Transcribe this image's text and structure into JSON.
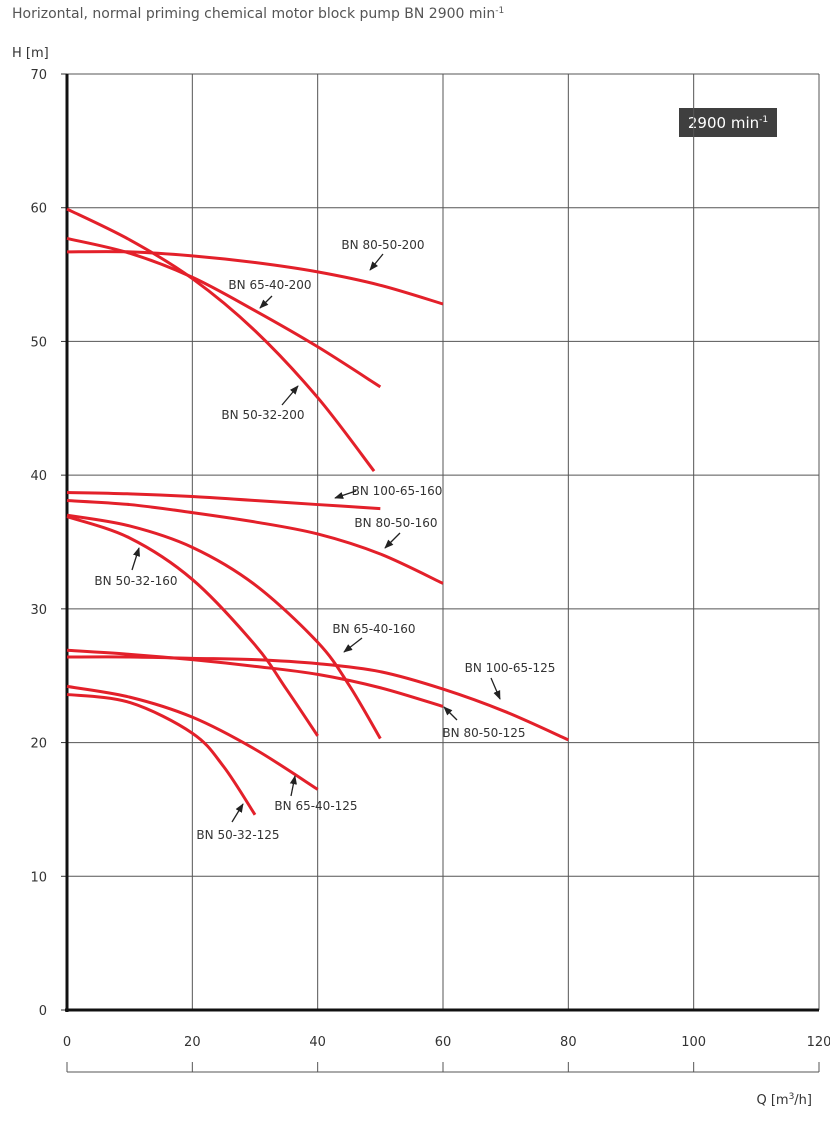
{
  "chart_data": {
    "type": "line",
    "title": "Horizontal, normal priming chemical motor block pump BN 2900 min",
    "title_sup": "-1",
    "badge": "2900 min",
    "badge_sup": "-1",
    "y_label": "H [m]",
    "x_label": "Q [m",
    "x_label_sup": "3",
    "x_label_end": "/h]",
    "xlim": [
      0,
      120
    ],
    "xticks": [
      0,
      20,
      40,
      60,
      80,
      100,
      120
    ],
    "ylim": [
      0,
      70
    ],
    "yticks": [
      0,
      10,
      20,
      30,
      40,
      50,
      60,
      70
    ],
    "grid": true,
    "series": [
      {
        "name": "BN 80-50-200",
        "color": "#e3202a",
        "x": [
          0,
          10,
          20,
          30,
          40,
          50,
          60
        ],
        "values": [
          56.7,
          56.7,
          56.4,
          55.9,
          55.2,
          54.2,
          52.8
        ]
      },
      {
        "name": "BN 65-40-200",
        "color": "#e3202a",
        "x": [
          0,
          10,
          20,
          30,
          40,
          50
        ],
        "values": [
          57.7,
          56.6,
          54.8,
          52.3,
          49.6,
          46.6
        ]
      },
      {
        "name": "BN 50-32-200",
        "color": "#e3202a",
        "x": [
          0,
          10,
          20,
          30,
          40,
          49
        ],
        "values": [
          59.9,
          57.6,
          54.7,
          50.8,
          45.8,
          40.3
        ]
      },
      {
        "name": "BN 100-65-160",
        "color": "#e3202a",
        "x": [
          0,
          10,
          20,
          30,
          40,
          50
        ],
        "values": [
          38.7,
          38.6,
          38.4,
          38.1,
          37.8,
          37.5
        ]
      },
      {
        "name": "BN 80-50-160",
        "color": "#e3202a",
        "x": [
          0,
          10,
          20,
          30,
          40,
          50,
          60
        ],
        "values": [
          38.1,
          37.8,
          37.2,
          36.5,
          35.6,
          34.1,
          31.9
        ]
      },
      {
        "name": "BN 50-32-160",
        "color": "#e3202a",
        "x": [
          0,
          10,
          20,
          30,
          35,
          40
        ],
        "values": [
          36.9,
          35.3,
          32.2,
          27.3,
          24,
          20.5
        ]
      },
      {
        "name": "BN 65-40-160",
        "color": "#e3202a",
        "x": [
          0,
          10,
          20,
          30,
          40,
          45,
          50
        ],
        "values": [
          37,
          36.2,
          34.6,
          31.8,
          27.5,
          24.3,
          20.3
        ]
      },
      {
        "name": "BN 100-65-125",
        "color": "#e3202a",
        "x": [
          0,
          10,
          20,
          30,
          40,
          50,
          60,
          70,
          80
        ],
        "values": [
          26.4,
          26.4,
          26.3,
          26.2,
          25.9,
          25.3,
          24.0,
          22.3,
          20.2
        ]
      },
      {
        "name": "BN 80-50-125",
        "color": "#e3202a",
        "x": [
          0,
          10,
          20,
          30,
          40,
          50,
          60
        ],
        "values": [
          26.9,
          26.6,
          26.2,
          25.7,
          25.1,
          24.1,
          22.7
        ]
      },
      {
        "name": "BN 65-40-125",
        "color": "#e3202a",
        "x": [
          0,
          10,
          20,
          30,
          40
        ],
        "values": [
          24.2,
          23.4,
          21.9,
          19.5,
          16.5
        ]
      },
      {
        "name": "BN 50-32-125",
        "color": "#e3202a",
        "x": [
          0,
          10,
          20,
          25,
          30
        ],
        "values": [
          23.6,
          23,
          20.7,
          18.2,
          14.6
        ]
      }
    ]
  }
}
